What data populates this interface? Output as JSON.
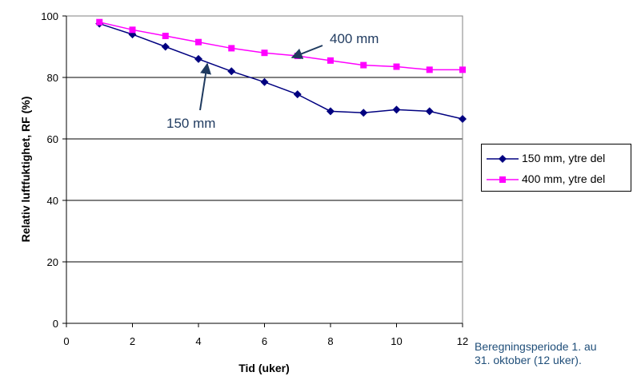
{
  "chart_data": {
    "type": "line",
    "title": "",
    "xlabel": "Tid (uker)",
    "ylabel": "Relativ luftfuktighet, RF (%)",
    "xlim": [
      0,
      12
    ],
    "ylim": [
      0,
      100
    ],
    "x_ticks": [
      "0",
      "2",
      "4",
      "6",
      "8",
      "10",
      "12"
    ],
    "y_ticks": [
      "0",
      "20",
      "40",
      "60",
      "80",
      "100"
    ],
    "grid": "horizontal",
    "legend_position": "right",
    "series": [
      {
        "name": "150 mm, ytre del",
        "color": "#000080",
        "marker": "diamond",
        "x": [
          1,
          2,
          3,
          4,
          5,
          6,
          7,
          8,
          9,
          10,
          11,
          12
        ],
        "values": [
          97.5,
          94,
          90,
          86,
          82,
          78.5,
          74.5,
          69,
          68.5,
          69.5,
          69,
          66.5
        ]
      },
      {
        "name": "400 mm, ytre del",
        "color": "#ff00ff",
        "marker": "square",
        "x": [
          1,
          2,
          3,
          4,
          5,
          6,
          7,
          8,
          9,
          10,
          11,
          12
        ],
        "values": [
          98,
          95.5,
          93.5,
          91.5,
          89.5,
          88,
          87,
          85.5,
          84,
          83.5,
          82.5,
          82.5
        ]
      }
    ],
    "annotations": [
      {
        "text": "400 mm",
        "series": 1
      },
      {
        "text": "150 mm",
        "series": 0
      }
    ],
    "note": [
      "Beregningsperiode 1. au",
      "31. oktober (12 uker)."
    ]
  }
}
